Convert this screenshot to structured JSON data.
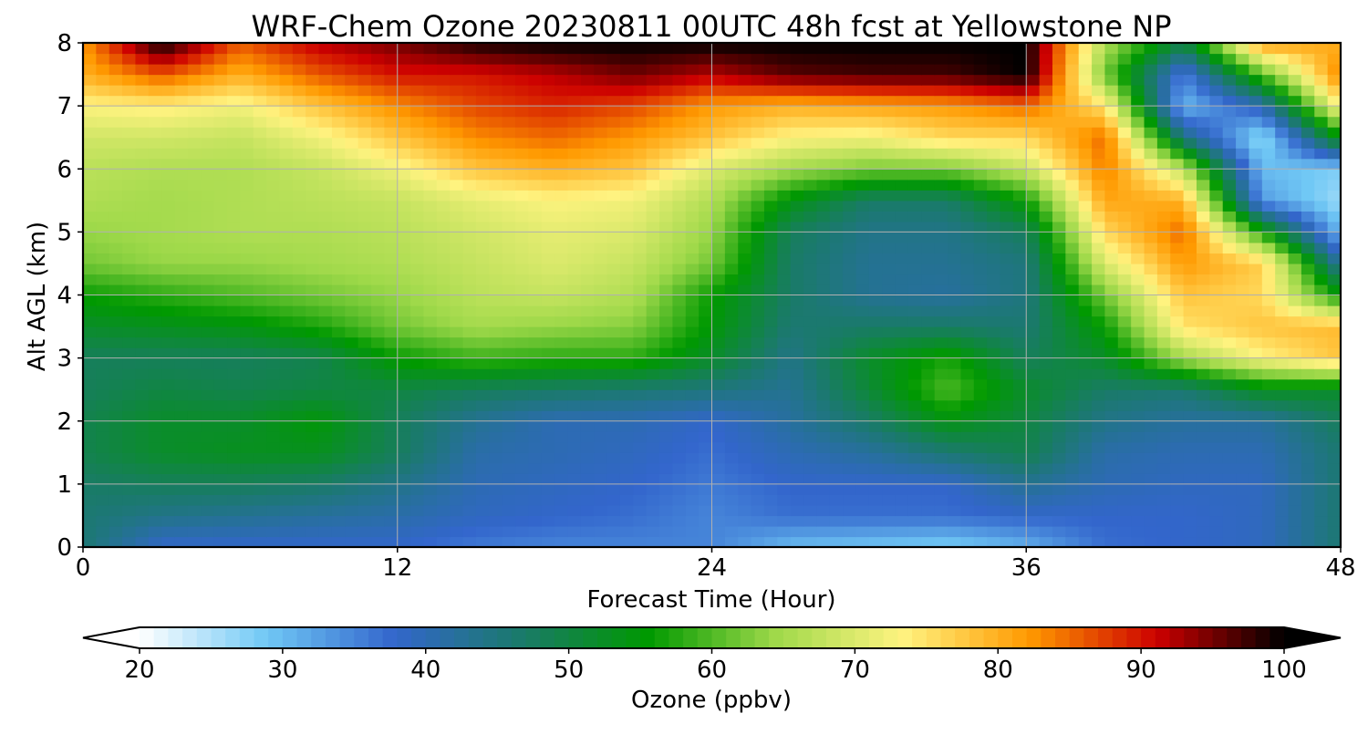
{
  "chart_data": {
    "type": "heatmap",
    "title": "WRF-Chem Ozone  20230811 00UTC 48h fcst at Yellowstone NP",
    "xlabel": "Forecast Time (Hour)",
    "ylabel": "Alt AGL (km)",
    "xlim": [
      0,
      48
    ],
    "ylim": [
      0,
      8
    ],
    "x_ticks": [
      0,
      12,
      24,
      36,
      48
    ],
    "y_ticks": [
      0,
      1,
      2,
      3,
      4,
      5,
      6,
      7,
      8
    ],
    "grid": true,
    "colorbar": {
      "label": "Ozone  (ppbv)",
      "range": [
        20,
        100
      ],
      "ticks": [
        20,
        30,
        40,
        50,
        60,
        70,
        80,
        90,
        100
      ],
      "extend": "both",
      "placement": "bottom",
      "colors": [
        "#ffffff",
        "#70c8f5",
        "#3366cc",
        "#1a7a6a",
        "#009900",
        "#9fd94a",
        "#fff380",
        "#ff9900",
        "#cc0000",
        "#000000"
      ]
    },
    "x": [
      0,
      3,
      6,
      9,
      12,
      15,
      18,
      21,
      24,
      27,
      30,
      33,
      36,
      39,
      42,
      45,
      48
    ],
    "y": [
      0,
      0.5,
      1,
      1.5,
      2,
      2.5,
      3,
      3.5,
      4,
      4.5,
      5,
      5.5,
      6,
      6.5,
      7,
      7.5,
      8
    ],
    "z": [
      [
        46,
        38,
        38,
        38,
        38,
        36,
        35,
        35,
        35,
        30,
        29,
        28,
        31,
        37,
        38,
        39,
        46
      ],
      [
        46,
        44,
        43,
        42,
        41,
        39,
        38,
        37,
        35,
        37,
        37,
        37,
        38,
        38,
        38,
        39,
        46
      ],
      [
        47,
        48,
        48,
        47,
        44,
        40,
        39,
        38,
        36,
        38,
        38,
        38,
        43,
        40,
        39,
        39,
        46
      ],
      [
        49,
        52,
        53,
        53,
        48,
        41,
        40,
        39,
        37,
        40,
        42,
        46,
        49,
        41,
        40,
        40,
        46
      ],
      [
        49,
        52,
        52,
        55,
        48,
        43,
        40,
        40,
        38,
        42,
        47,
        54,
        50,
        44,
        42,
        42,
        48
      ],
      [
        48,
        50,
        49,
        50,
        50,
        48,
        47,
        46,
        45,
        43,
        51,
        60,
        52,
        47,
        46,
        53,
        52
      ],
      [
        48,
        48,
        48,
        49,
        56,
        59,
        58,
        58,
        52,
        44,
        52,
        57,
        48,
        52,
        65,
        73,
        78
      ],
      [
        52,
        53,
        54,
        57,
        62,
        65,
        64,
        63,
        55,
        46,
        47,
        47,
        46,
        56,
        75,
        78,
        79
      ],
      [
        56,
        58,
        60,
        62,
        64,
        67,
        68,
        66,
        56,
        47,
        43,
        42,
        45,
        62,
        78,
        76,
        55
      ],
      [
        62,
        64,
        64,
        65,
        66,
        68,
        70,
        68,
        62,
        47,
        43,
        43,
        45,
        70,
        82,
        77,
        42
      ],
      [
        64,
        65,
        66,
        66,
        67,
        69,
        71,
        70,
        64,
        48,
        44,
        44,
        48,
        76,
        85,
        57,
        30
      ],
      [
        66,
        65,
        66,
        67,
        68,
        71,
        73,
        72,
        66,
        54,
        47,
        47,
        56,
        81,
        80,
        33,
        26
      ],
      [
        67,
        66,
        66,
        68,
        72,
        78,
        80,
        78,
        70,
        65,
        62,
        62,
        68,
        84,
        67,
        30,
        28
      ],
      [
        69,
        69,
        68,
        72,
        78,
        83,
        85,
        82,
        78,
        73,
        72,
        76,
        76,
        85,
        45,
        26,
        55
      ],
      [
        73,
        74,
        72,
        78,
        83,
        87,
        89,
        87,
        82,
        80,
        81,
        82,
        85,
        75,
        30,
        40,
        74
      ],
      [
        80,
        86,
        80,
        86,
        90,
        90,
        92,
        95,
        92,
        96,
        97,
        97,
        100,
        62,
        35,
        60,
        84
      ],
      [
        82,
        100,
        86,
        92,
        95,
        99,
        100,
        100,
        100,
        100,
        100,
        100,
        100,
        66,
        50,
        82,
        80
      ]
    ]
  }
}
